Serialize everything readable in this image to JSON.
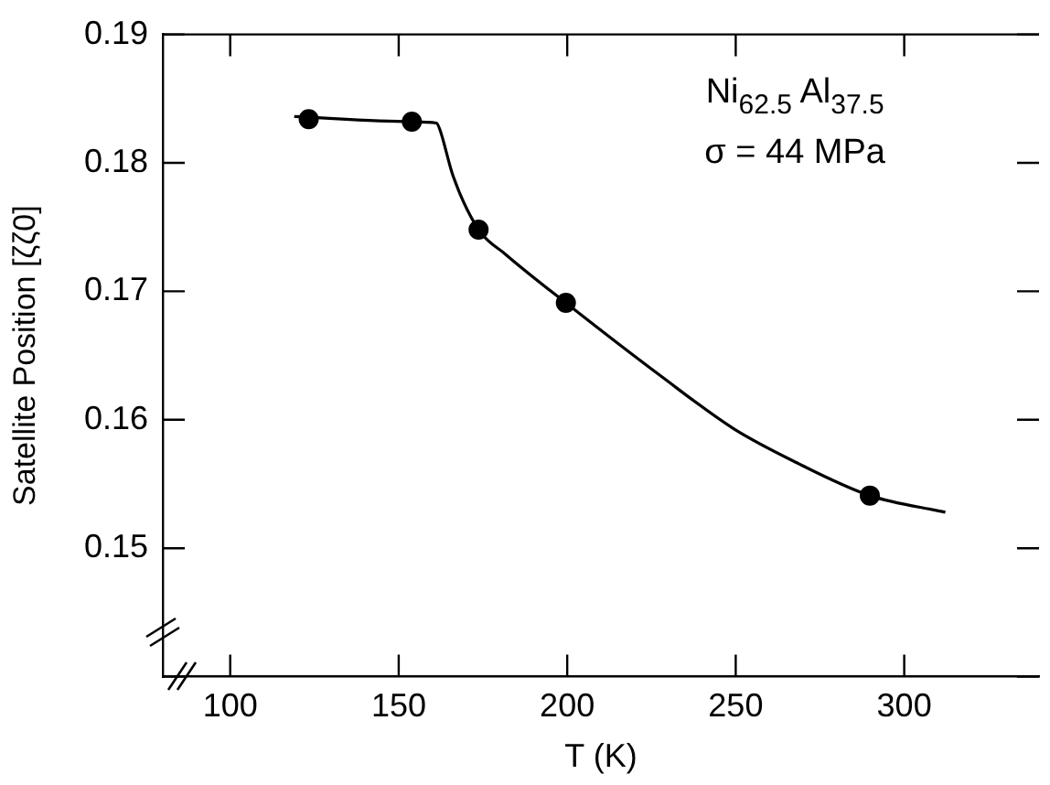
{
  "chart_data": {
    "type": "scatter",
    "xlabel": "T (K)",
    "ylabel": "Satellite Position [ζζ0]",
    "annotations": [
      "Ni$_{62.5}$ Al$_{37.5}$",
      "σ = 44 MPa"
    ],
    "xlim": [
      80,
      340
    ],
    "xticks": [
      100,
      150,
      200,
      250,
      300
    ],
    "ylim": [
      0.14,
      0.19
    ],
    "yticks": [
      {
        "value": 0.14,
        "label": null
      },
      0.15,
      0.16,
      0.17,
      0.18,
      0.19
    ],
    "grid": false,
    "legend": false,
    "series": [
      {
        "type": "line",
        "color": "#000000",
        "marker": "none",
        "line_style": "solid",
        "x": [
          119,
          154,
          161.2,
          162.2,
          166.1,
          173.7,
          181.6,
          199.6,
          227.8,
          249.4,
          267,
          289.8,
          312.2
        ],
        "values": [
          0.1836,
          0.1832,
          0.1831,
          0.1826,
          0.179,
          0.1748,
          0.1729,
          0.1691,
          0.1634,
          0.1593,
          0.1568,
          0.1541,
          0.1528
        ]
      },
      {
        "type": "scatter",
        "color": "#000000",
        "marker": "circle",
        "x": [
          123.3,
          153.9,
          173.7,
          199.6,
          289.8
        ],
        "values": [
          0.1834,
          0.1832,
          0.1748,
          0.1691,
          0.1541
        ]
      }
    ]
  }
}
